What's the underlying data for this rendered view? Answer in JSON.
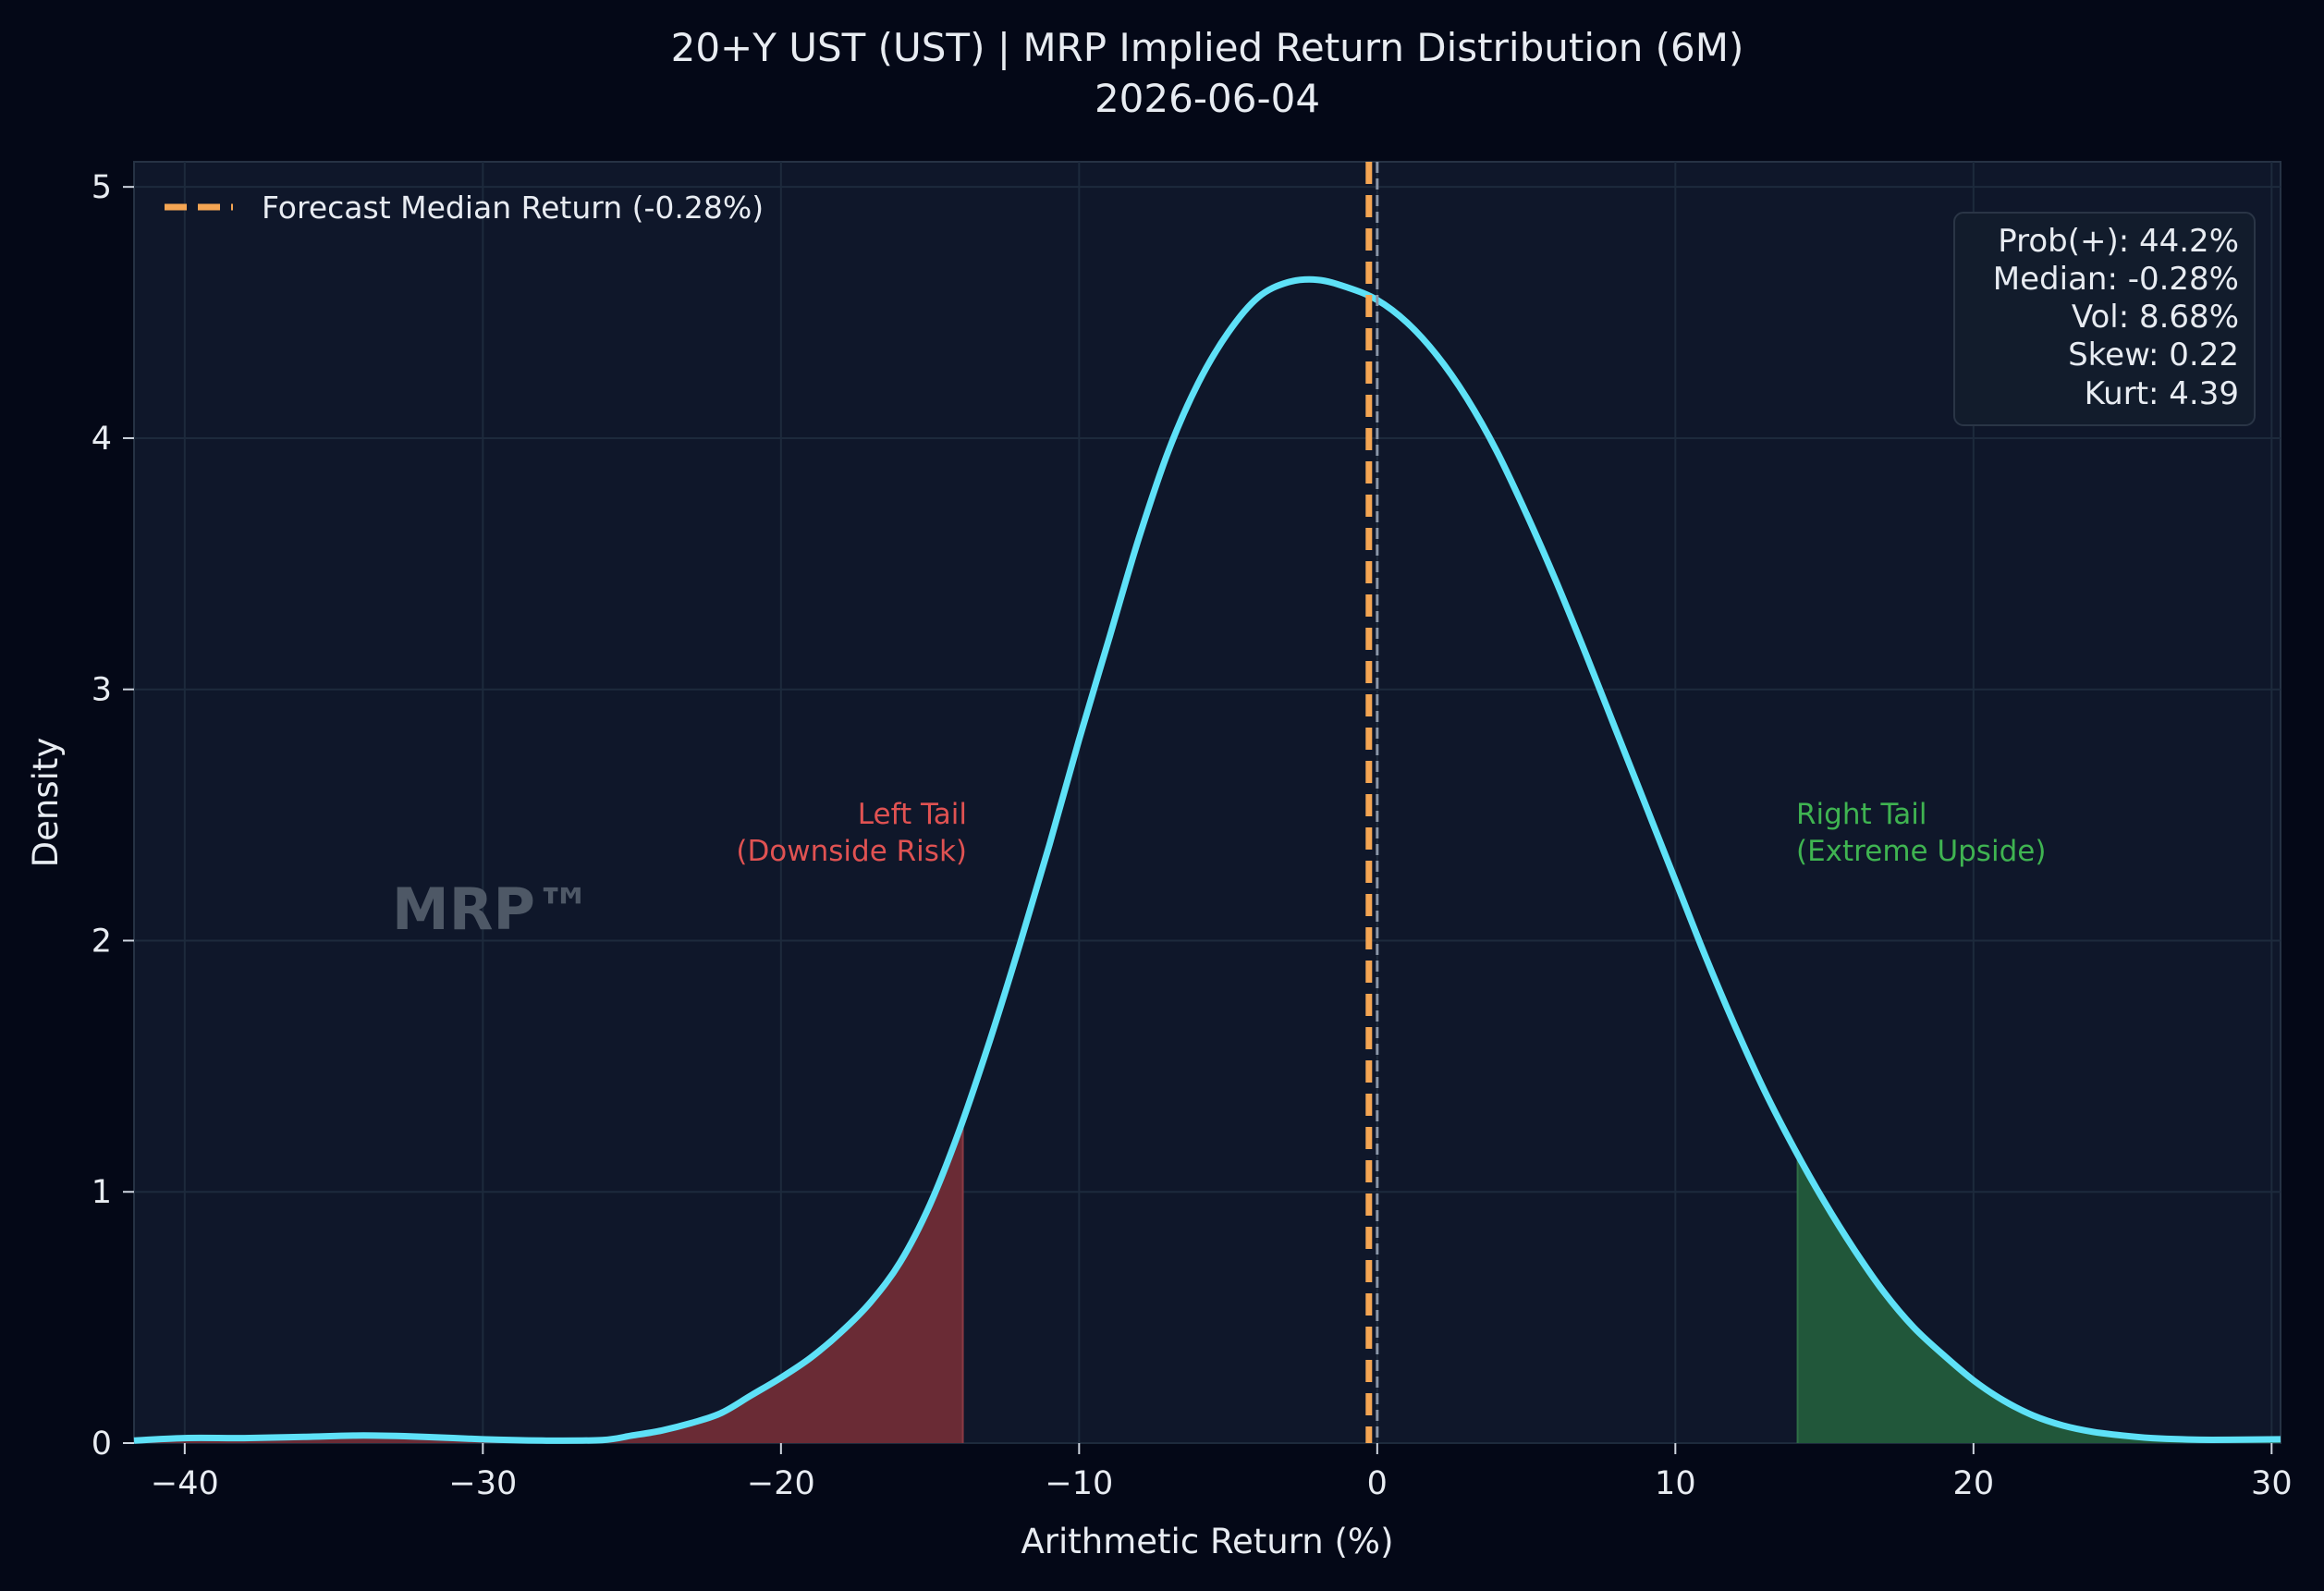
{
  "chart_data": {
    "type": "area",
    "title": "20+Y UST (UST) | MRP Implied Return Distribution (6M)",
    "subtitle": "2026-06-04",
    "xlabel": "Arithmetic Return (%)",
    "ylabel": "Density",
    "xlim": [
      -41.7,
      30.3
    ],
    "ylim": [
      0,
      5.1
    ],
    "x_ticks": [
      -40,
      -30,
      -20,
      -10,
      0,
      10,
      20,
      30
    ],
    "x_tick_labels": [
      "−40",
      "−30",
      "−20",
      "−10",
      "0",
      "10",
      "20",
      "30"
    ],
    "y_ticks": [
      0,
      1,
      2,
      3,
      4,
      5
    ],
    "y_tick_labels": [
      "0",
      "1",
      "2",
      "3",
      "4",
      "5"
    ],
    "grid": true,
    "legend_position": "top-left",
    "series": [
      {
        "color": "#5ee1f7",
        "x": [
          -41.7,
          -40,
          -38,
          -36,
          -34,
          -32,
          -30,
          -28,
          -26,
          -25,
          -24,
          -23,
          -22,
          -21,
          -20,
          -19,
          -18,
          -17,
          -16,
          -15,
          -14,
          -13,
          -12,
          -11,
          -10,
          -9,
          -8,
          -7,
          -6,
          -5,
          -4,
          -3,
          -2,
          -1,
          0,
          1,
          2,
          3,
          4,
          5,
          6,
          7,
          8,
          9,
          10,
          11,
          12,
          13,
          14,
          15,
          16,
          17,
          18,
          19,
          20,
          21,
          22,
          23,
          24,
          25,
          26,
          27,
          28,
          30.3
        ],
        "y": [
          0.01,
          0.02,
          0.02,
          0.025,
          0.03,
          0.025,
          0.015,
          0.01,
          0.012,
          0.03,
          0.05,
          0.08,
          0.12,
          0.19,
          0.26,
          0.34,
          0.44,
          0.56,
          0.72,
          0.95,
          1.25,
          1.6,
          1.98,
          2.38,
          2.8,
          3.2,
          3.6,
          3.95,
          4.22,
          4.42,
          4.56,
          4.62,
          4.63,
          4.6,
          4.55,
          4.46,
          4.33,
          4.16,
          3.95,
          3.7,
          3.43,
          3.14,
          2.84,
          2.54,
          2.24,
          1.94,
          1.66,
          1.4,
          1.17,
          0.96,
          0.77,
          0.6,
          0.46,
          0.35,
          0.25,
          0.17,
          0.11,
          0.07,
          0.045,
          0.03,
          0.02,
          0.015,
          0.013,
          0.015
        ]
      }
    ],
    "shaded_regions": [
      {
        "from": -41.7,
        "to": -13.9,
        "color": "#6a2b35"
      },
      {
        "from": 14.1,
        "to": 30.3,
        "color": "#21573a"
      }
    ],
    "vertical_lines": [
      {
        "x": -0.28,
        "color": "#f4a553",
        "style": "dashed"
      },
      {
        "x": 0,
        "color": "#8a96a8",
        "style": "dashed"
      }
    ],
    "legend": [
      {
        "label": "Forecast Median Return (-0.28%)",
        "color": "#f4a553",
        "style": "dashed"
      }
    ],
    "stats": [
      "Prob(+): 44.2%",
      "Median: -0.28%",
      "Vol: 8.68%",
      "Skew: 0.22",
      "Kurt: 4.39"
    ],
    "annotations": {
      "left_tail": [
        "Left Tail",
        "(Downside Risk)"
      ],
      "right_tail": [
        "Right Tail",
        "(Extreme Upside)"
      ],
      "watermark": "MRP™"
    },
    "colors": {
      "background": "#040817",
      "plot_background": "#0f172a",
      "curve": "#5ee1f7",
      "median_line": "#f4a553",
      "zero_line": "#8a96a8",
      "left_tail_fill": "#6a2b35",
      "right_tail_fill": "#21573a",
      "left_tail_text": "#e05252",
      "right_tail_text": "#3fb451"
    }
  }
}
